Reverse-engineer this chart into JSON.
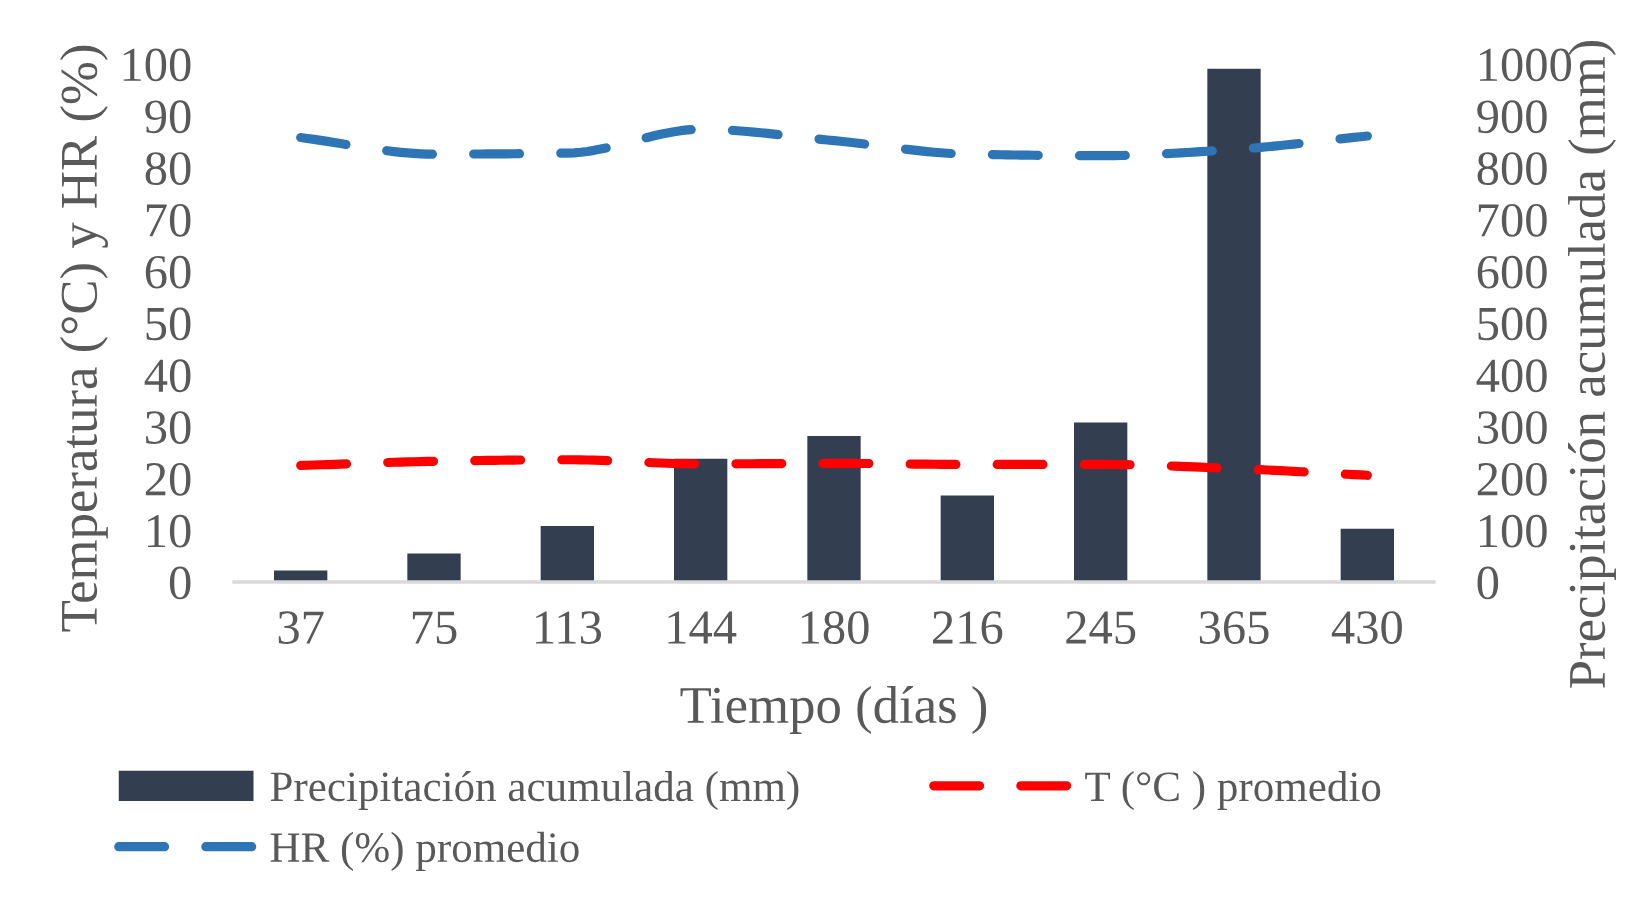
{
  "chart_data": {
    "type": "line",
    "xlabel": "Tiempo (días )",
    "ylabel": "Temperatura (°C) y HR (%)",
    "y2label": "Precipitación acumulada (mm)",
    "categories": [
      "37",
      "75",
      "113",
      "144",
      "180",
      "216",
      "245",
      "365",
      "430"
    ],
    "series": [
      {
        "name": "Precipitación acumulada (mm)",
        "type": "bar",
        "axis": "y2",
        "color": "#333f50",
        "values": [
          22,
          55,
          108,
          238,
          282,
          167,
          308,
          991,
          103
        ]
      },
      {
        "name": "T (°C ) promedio",
        "color": "#ff0000",
        "values": [
          22.5,
          23.3,
          23.6,
          22.8,
          22.9,
          22.7,
          22.7,
          21.9,
          20.6
        ]
      },
      {
        "name": "HR (%) promedio",
        "color": "#2e75b6",
        "values": [
          85.8,
          82.6,
          82.8,
          87.4,
          85.2,
          82.6,
          82.3,
          83.5,
          86.1
        ]
      }
    ],
    "line_style": "dashed",
    "ylim": [
      0,
      100
    ],
    "yticks": [
      0,
      10,
      20,
      30,
      40,
      50,
      60,
      70,
      80,
      90,
      100
    ],
    "y2lim": [
      0,
      1000
    ],
    "y2ticks": [
      0,
      100,
      200,
      300,
      400,
      500,
      600,
      700,
      800,
      900,
      1000
    ],
    "legend": "bottom"
  }
}
